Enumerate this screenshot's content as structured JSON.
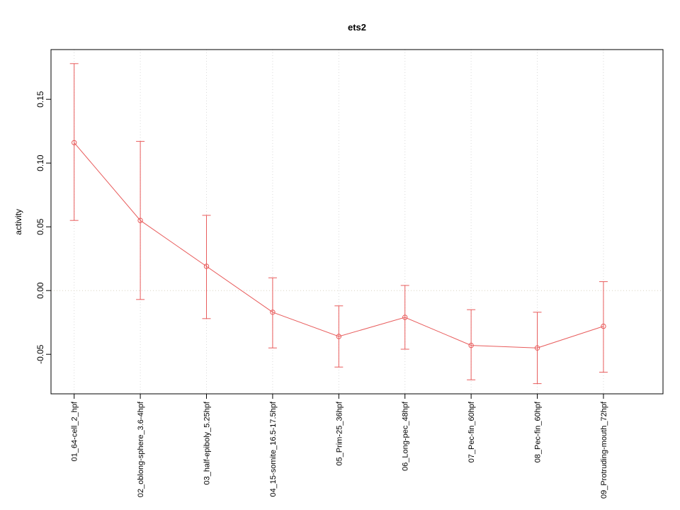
{
  "title": "ets2",
  "chart_data": {
    "type": "line",
    "title": "ets2",
    "xlabel": "",
    "ylabel": "activity",
    "categories": [
      "01_64-cell_2_hpf",
      "02_oblong-sphere_3.6-4hpf",
      "03_half-epiboly_5.25hpf",
      "04_15-somite_16.5-17.5hpf",
      "05_Prim-25_36hpf",
      "06_Long-pec_48hpf",
      "07_Pec-fin_60hpf",
      "08_Pec-fin_60hpf",
      "09_Protruding-mouth_72hpf"
    ],
    "series": [
      {
        "name": "activity",
        "values": [
          0.116,
          0.055,
          0.019,
          -0.017,
          -0.036,
          -0.021,
          -0.043,
          -0.045,
          -0.028
        ],
        "upper": [
          0.178,
          0.117,
          0.059,
          0.01,
          -0.012,
          0.004,
          -0.015,
          -0.017,
          0.007
        ],
        "lower": [
          0.055,
          -0.007,
          -0.022,
          -0.045,
          -0.06,
          -0.046,
          -0.07,
          -0.073,
          -0.064
        ]
      }
    ],
    "yticks": [
      -0.05,
      0,
      0.05,
      0.1,
      0.15
    ],
    "ytick_labels": [
      "-0.05",
      "0.00",
      "0.05",
      "0.10",
      "0.15"
    ],
    "ylim": [
      -0.081,
      0.189
    ],
    "xlim": [
      0.65,
      9.9
    ],
    "grid": {
      "vertical_dotted_at_categories": true,
      "horizontal_dotted_at_zero": true
    },
    "legend": "none",
    "marker": "open-circle",
    "error_bars": true,
    "colors": {
      "series": "#e85c5c",
      "grid": "#d9d9d9",
      "zero_line": "#d9d2c2",
      "axis": "#000000",
      "background": "#ffffff"
    }
  }
}
